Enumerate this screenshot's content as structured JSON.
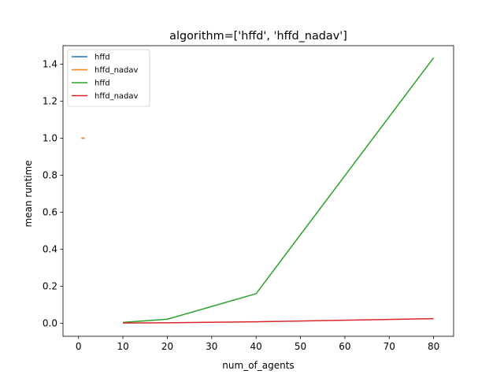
{
  "chart_data": {
    "type": "line",
    "title": "algorithm=['hffd', 'hffd_nadav']",
    "xlabel": "num_of_agents",
    "ylabel": "mean runtime",
    "xlim": [
      -3.5,
      84.5
    ],
    "ylim": [
      -0.07,
      1.5
    ],
    "xticks": [
      0,
      10,
      20,
      30,
      40,
      50,
      60,
      70,
      80
    ],
    "yticks": [
      0.0,
      0.2,
      0.4,
      0.6,
      0.8,
      1.0,
      1.2,
      1.4
    ],
    "xtick_labels": [
      "0",
      "10",
      "20",
      "30",
      "40",
      "50",
      "60",
      "70",
      "80"
    ],
    "ytick_labels": [
      "0.0",
      "0.2",
      "0.4",
      "0.6",
      "0.8",
      "1.0",
      "1.2",
      "1.4"
    ],
    "grid": false,
    "legend_position": "top-left",
    "series": [
      {
        "name": "hffd",
        "color": "#1f77b4",
        "x": [
          1
        ],
        "y": [
          1.0
        ]
      },
      {
        "name": "hffd_nadav",
        "color": "#ff7f0e",
        "x": [
          1
        ],
        "y": [
          1.0
        ]
      },
      {
        "name": "hffd",
        "color": "#2ca02c",
        "x": [
          10,
          20,
          40,
          80
        ],
        "y": [
          0.005,
          0.022,
          0.16,
          1.435
        ]
      },
      {
        "name": "hffd_nadav",
        "color": "#d62728",
        "x": [
          10,
          20,
          40,
          80
        ],
        "y": [
          0.002,
          0.003,
          0.008,
          0.025
        ]
      }
    ]
  }
}
